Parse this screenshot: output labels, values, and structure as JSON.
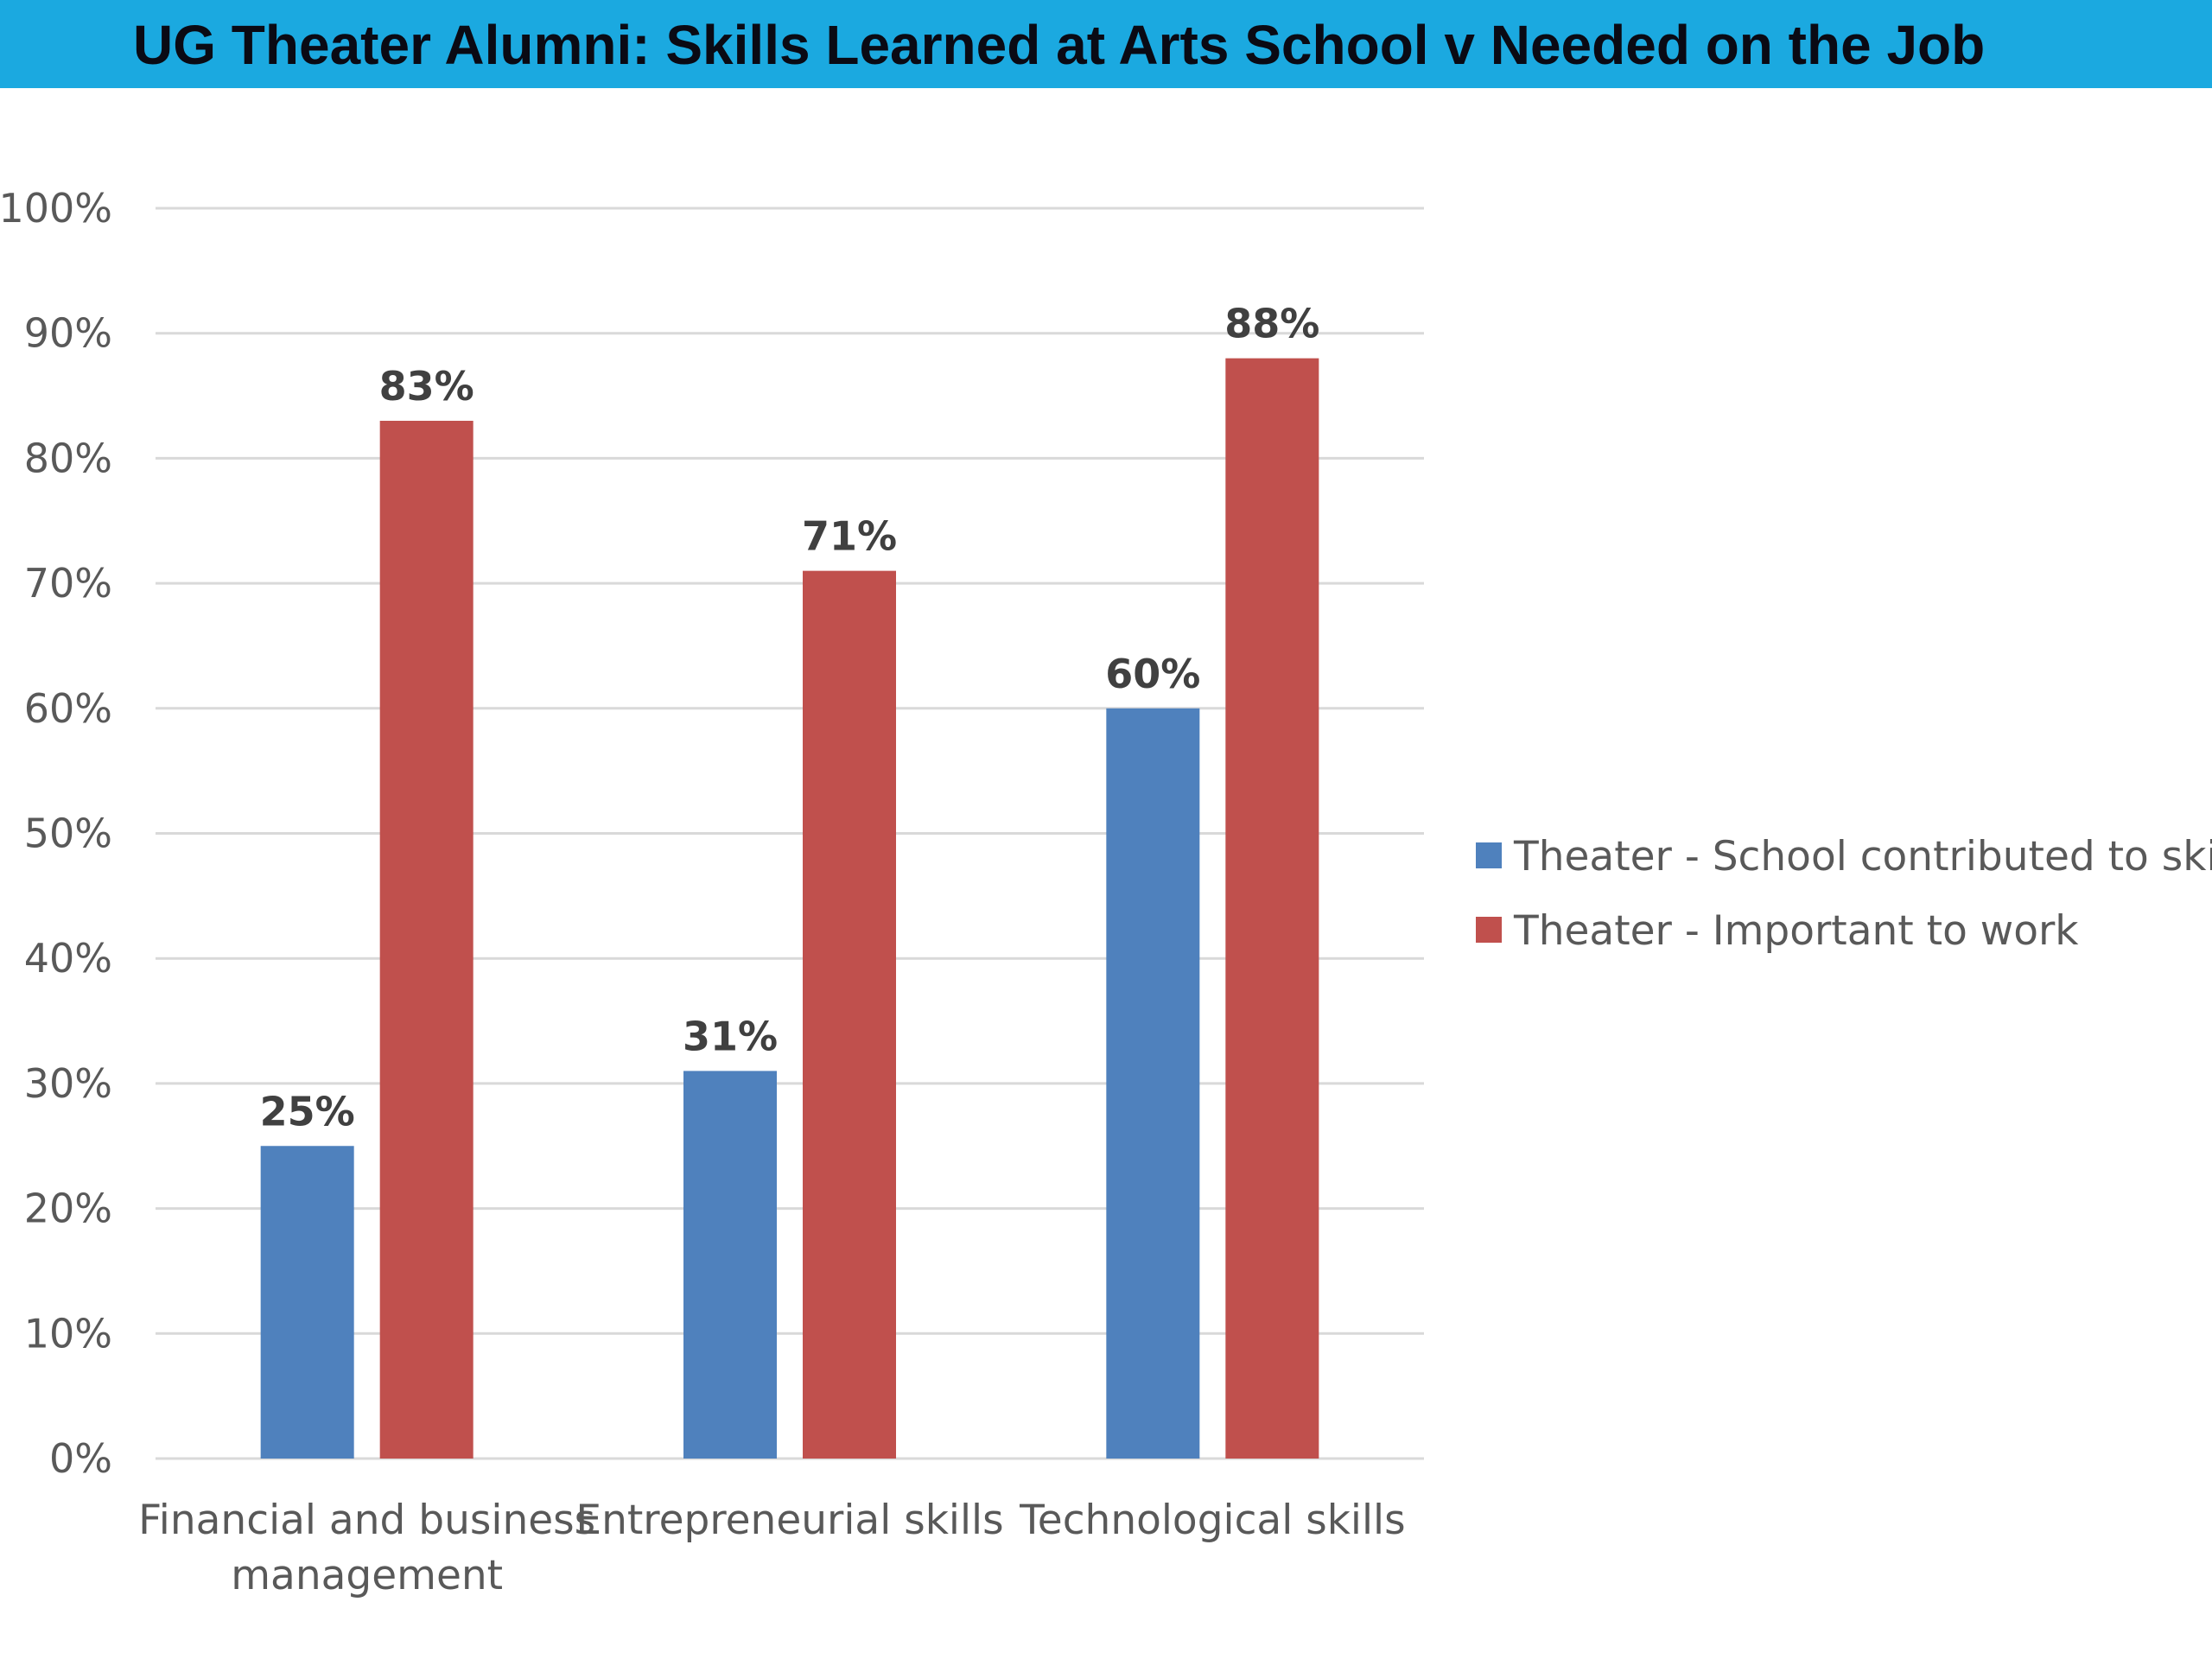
{
  "header": {
    "title": "UG Theater Alumni: Skills Learned at Arts School v Needed on the Job"
  },
  "colors": {
    "header_bg": "#1ba9e0",
    "series_blue": "#4f81bd",
    "series_red": "#c0504d",
    "grid": "#d9d9d9"
  },
  "chart_data": {
    "type": "bar",
    "title": "UG Theater Alumni: Skills Learned at Arts School v Needed on the Job",
    "categories": [
      [
        "Financial and business",
        "management"
      ],
      [
        "Entrepreneurial skills"
      ],
      [
        "Technological skills"
      ]
    ],
    "series": [
      {
        "name": "Theater - School contributed to skill",
        "color": "#4f81bd",
        "values": [
          25,
          31,
          60
        ],
        "labels": [
          "25%",
          "31%",
          "60%"
        ]
      },
      {
        "name": "Theater - Important to work",
        "color": "#c0504d",
        "values": [
          83,
          71,
          88
        ],
        "labels": [
          "83%",
          "71%",
          "88%"
        ]
      }
    ],
    "ylim": [
      0,
      100
    ],
    "yticks": [
      "0%",
      "10%",
      "20%",
      "30%",
      "40%",
      "50%",
      "60%",
      "70%",
      "80%",
      "90%",
      "100%"
    ],
    "xlabel": "",
    "ylabel": "",
    "grid": true,
    "legend_position": "right"
  }
}
